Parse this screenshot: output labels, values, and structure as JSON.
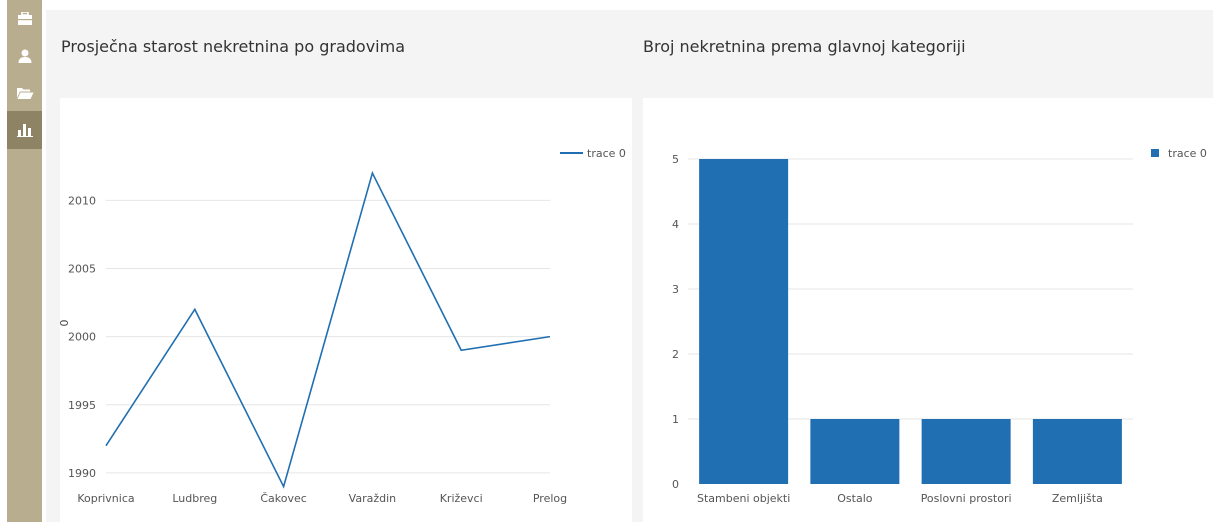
{
  "sidebar": {
    "items": [
      {
        "icon": "briefcase-icon",
        "active": false
      },
      {
        "icon": "user-icon",
        "active": false
      },
      {
        "icon": "folder-open-icon",
        "active": false
      },
      {
        "icon": "bar-chart-icon",
        "active": true
      }
    ]
  },
  "left_title": "Prosječna starost nekretnina po gradovima",
  "right_title": "Broj nekretnina prema glavnoj kategoriji",
  "chart_data": [
    {
      "type": "line",
      "ylabel": "0",
      "categories": [
        "Koprivnica",
        "Ludbreg",
        "Čakovec",
        "Varaždin",
        "Križevci",
        "Prelog"
      ],
      "series": [
        {
          "name": "trace 0",
          "values": [
            1992,
            2002,
            1989,
            2012,
            1999,
            2000
          ],
          "color": "#1f6fb2"
        }
      ],
      "yticks": [
        1990,
        1995,
        2000,
        2005,
        2010
      ],
      "ylim": [
        1987.5,
        2014.5
      ],
      "grid": true,
      "legend": "top-right"
    },
    {
      "type": "bar",
      "categories": [
        "Stambeni objekti",
        "Ostalo",
        "Poslovni prostori",
        "Zemljišta"
      ],
      "series": [
        {
          "name": "trace 0",
          "values": [
            5,
            1,
            1,
            1
          ],
          "color": "#1f6fb2"
        }
      ],
      "yticks": [
        0,
        1,
        2,
        3,
        4,
        5
      ],
      "ylim": [
        0,
        5
      ],
      "grid": true,
      "legend": "top-right"
    }
  ]
}
